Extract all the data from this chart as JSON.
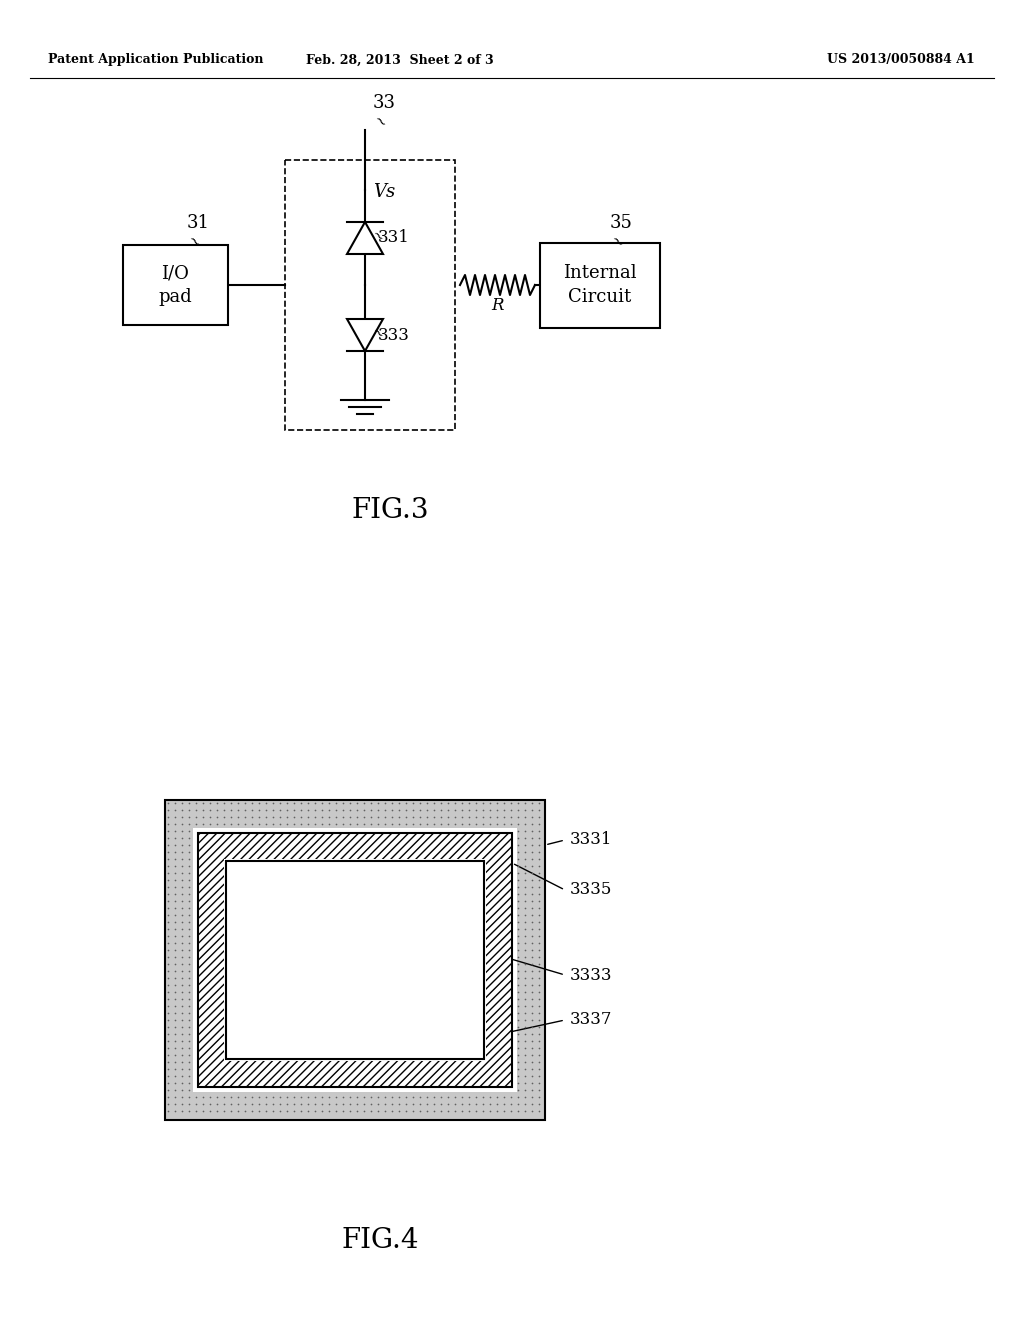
{
  "header_left": "Patent Application Publication",
  "header_mid": "Feb. 28, 2013  Sheet 2 of 3",
  "header_right": "US 2013/0050884 A1",
  "fig3_label": "FIG.3",
  "fig4_label": "FIG.4",
  "label_33": "33",
  "label_31": "31",
  "label_35": "35",
  "label_331": "331",
  "label_333": "333",
  "label_Vs": "Vs",
  "label_R": "R",
  "label_io": "I/O\npad",
  "label_ic": "Internal\nCircuit",
  "label_3331": "3331",
  "label_3335": "3335",
  "label_3333": "3333",
  "label_3337": "3337",
  "bg_color": "#ffffff",
  "line_color": "#000000"
}
